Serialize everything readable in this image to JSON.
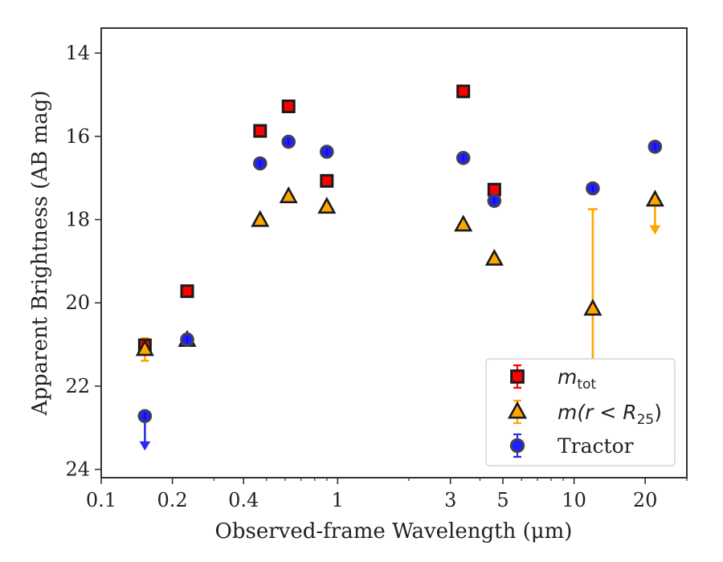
{
  "chart_data": {
    "type": "scatter",
    "title": "",
    "xlabel": "Observed-frame Wavelength (μm)",
    "ylabel": "Apparent Brightness (AB mag)",
    "x_scale": "log",
    "xlim": [
      0.1,
      30
    ],
    "ylim": [
      24.2,
      13.4
    ],
    "y_inverted": true,
    "x_ticks": [
      0.1,
      0.2,
      0.4,
      1,
      3,
      5,
      10,
      20
    ],
    "x_tick_labels": [
      "0.1",
      "0.2",
      "0.4",
      "1",
      "3",
      "5",
      "10",
      "20"
    ],
    "y_ticks": [
      14,
      16,
      18,
      20,
      22,
      24
    ],
    "y_tick_labels": [
      "14",
      "16",
      "18",
      "20",
      "22",
      "24"
    ],
    "grid": false,
    "legend_position": "lower-right",
    "series": [
      {
        "name": "m_tot",
        "legend_main": "m",
        "legend_sub": "tot",
        "marker": "square",
        "color": "#ff0000",
        "edge": "#1a1a1a",
        "points": [
          {
            "x": 0.153,
            "y": 21.02
          },
          {
            "x": 0.231,
            "y": 19.72
          },
          {
            "x": 0.47,
            "y": 15.87
          },
          {
            "x": 0.62,
            "y": 15.28
          },
          {
            "x": 0.9,
            "y": 17.07
          },
          {
            "x": 3.4,
            "y": 14.92
          },
          {
            "x": 4.6,
            "y": 17.28
          }
        ]
      },
      {
        "name": "m(r < R25)",
        "legend_main": "m(r < R",
        "legend_sub": "25",
        "legend_tail": ")",
        "marker": "triangle",
        "color": "#ffa500",
        "edge": "#1a1a1a",
        "points": [
          {
            "x": 0.153,
            "y": 21.12,
            "err": 0.27
          },
          {
            "x": 0.231,
            "y": 20.9
          },
          {
            "x": 0.47,
            "y": 18.02
          },
          {
            "x": 0.62,
            "y": 17.45
          },
          {
            "x": 0.9,
            "y": 17.7
          },
          {
            "x": 3.4,
            "y": 18.13
          },
          {
            "x": 4.6,
            "y": 18.95
          },
          {
            "x": 12.0,
            "y": 20.15,
            "err_low": 17.75,
            "err_high": 22.5
          },
          {
            "x": 22.0,
            "y": 17.53,
            "upper_limit": true
          }
        ]
      },
      {
        "name": "Tractor",
        "legend_main": "Tractor",
        "marker": "circle",
        "color": "#1f1fff",
        "edge": "#444444",
        "points": [
          {
            "x": 0.153,
            "y": 22.72,
            "upper_limit": true
          },
          {
            "x": 0.231,
            "y": 20.88
          },
          {
            "x": 0.47,
            "y": 16.65
          },
          {
            "x": 0.62,
            "y": 16.13
          },
          {
            "x": 0.9,
            "y": 16.37
          },
          {
            "x": 3.4,
            "y": 16.52
          },
          {
            "x": 4.6,
            "y": 17.55
          },
          {
            "x": 12.0,
            "y": 17.25
          },
          {
            "x": 22.0,
            "y": 16.25
          }
        ]
      }
    ]
  }
}
